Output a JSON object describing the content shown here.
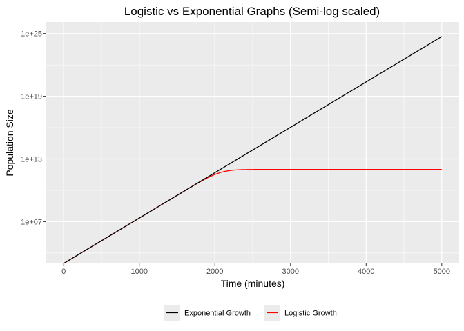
{
  "chart_data": {
    "type": "line",
    "title": "Logistic vs Exponential Graphs (Semi-log scaled)",
    "xlabel": "Time (minutes)",
    "ylabel": "Population Size",
    "x_scale": "linear",
    "y_scale": "log10",
    "xlim": [
      -230,
      5230
    ],
    "ylim_log10": [
      3.0,
      26.1
    ],
    "x_ticks": [
      0,
      1000,
      2000,
      3000,
      4000,
      5000
    ],
    "x_tick_labels": [
      "0",
      "1000",
      "2000",
      "3000",
      "4000",
      "5000"
    ],
    "y_ticks_log10": [
      7,
      13,
      19,
      25
    ],
    "y_tick_labels": [
      "1e+07",
      "1e+13",
      "1e+19",
      "1e+25"
    ],
    "grid": true,
    "legend_position": "bottom",
    "series": [
      {
        "name": "Exponential Growth",
        "color": "#000000",
        "shape": "exponential",
        "x0": 0,
        "y0": 1000,
        "rate_per_minute": 0.01
      },
      {
        "name": "Logistic Growth",
        "color": "#ff0000",
        "shape": "logistic",
        "x0": 0,
        "y0": 1000,
        "rate_per_minute": 0.01,
        "carrying_capacity": 1000000000000
      }
    ]
  }
}
